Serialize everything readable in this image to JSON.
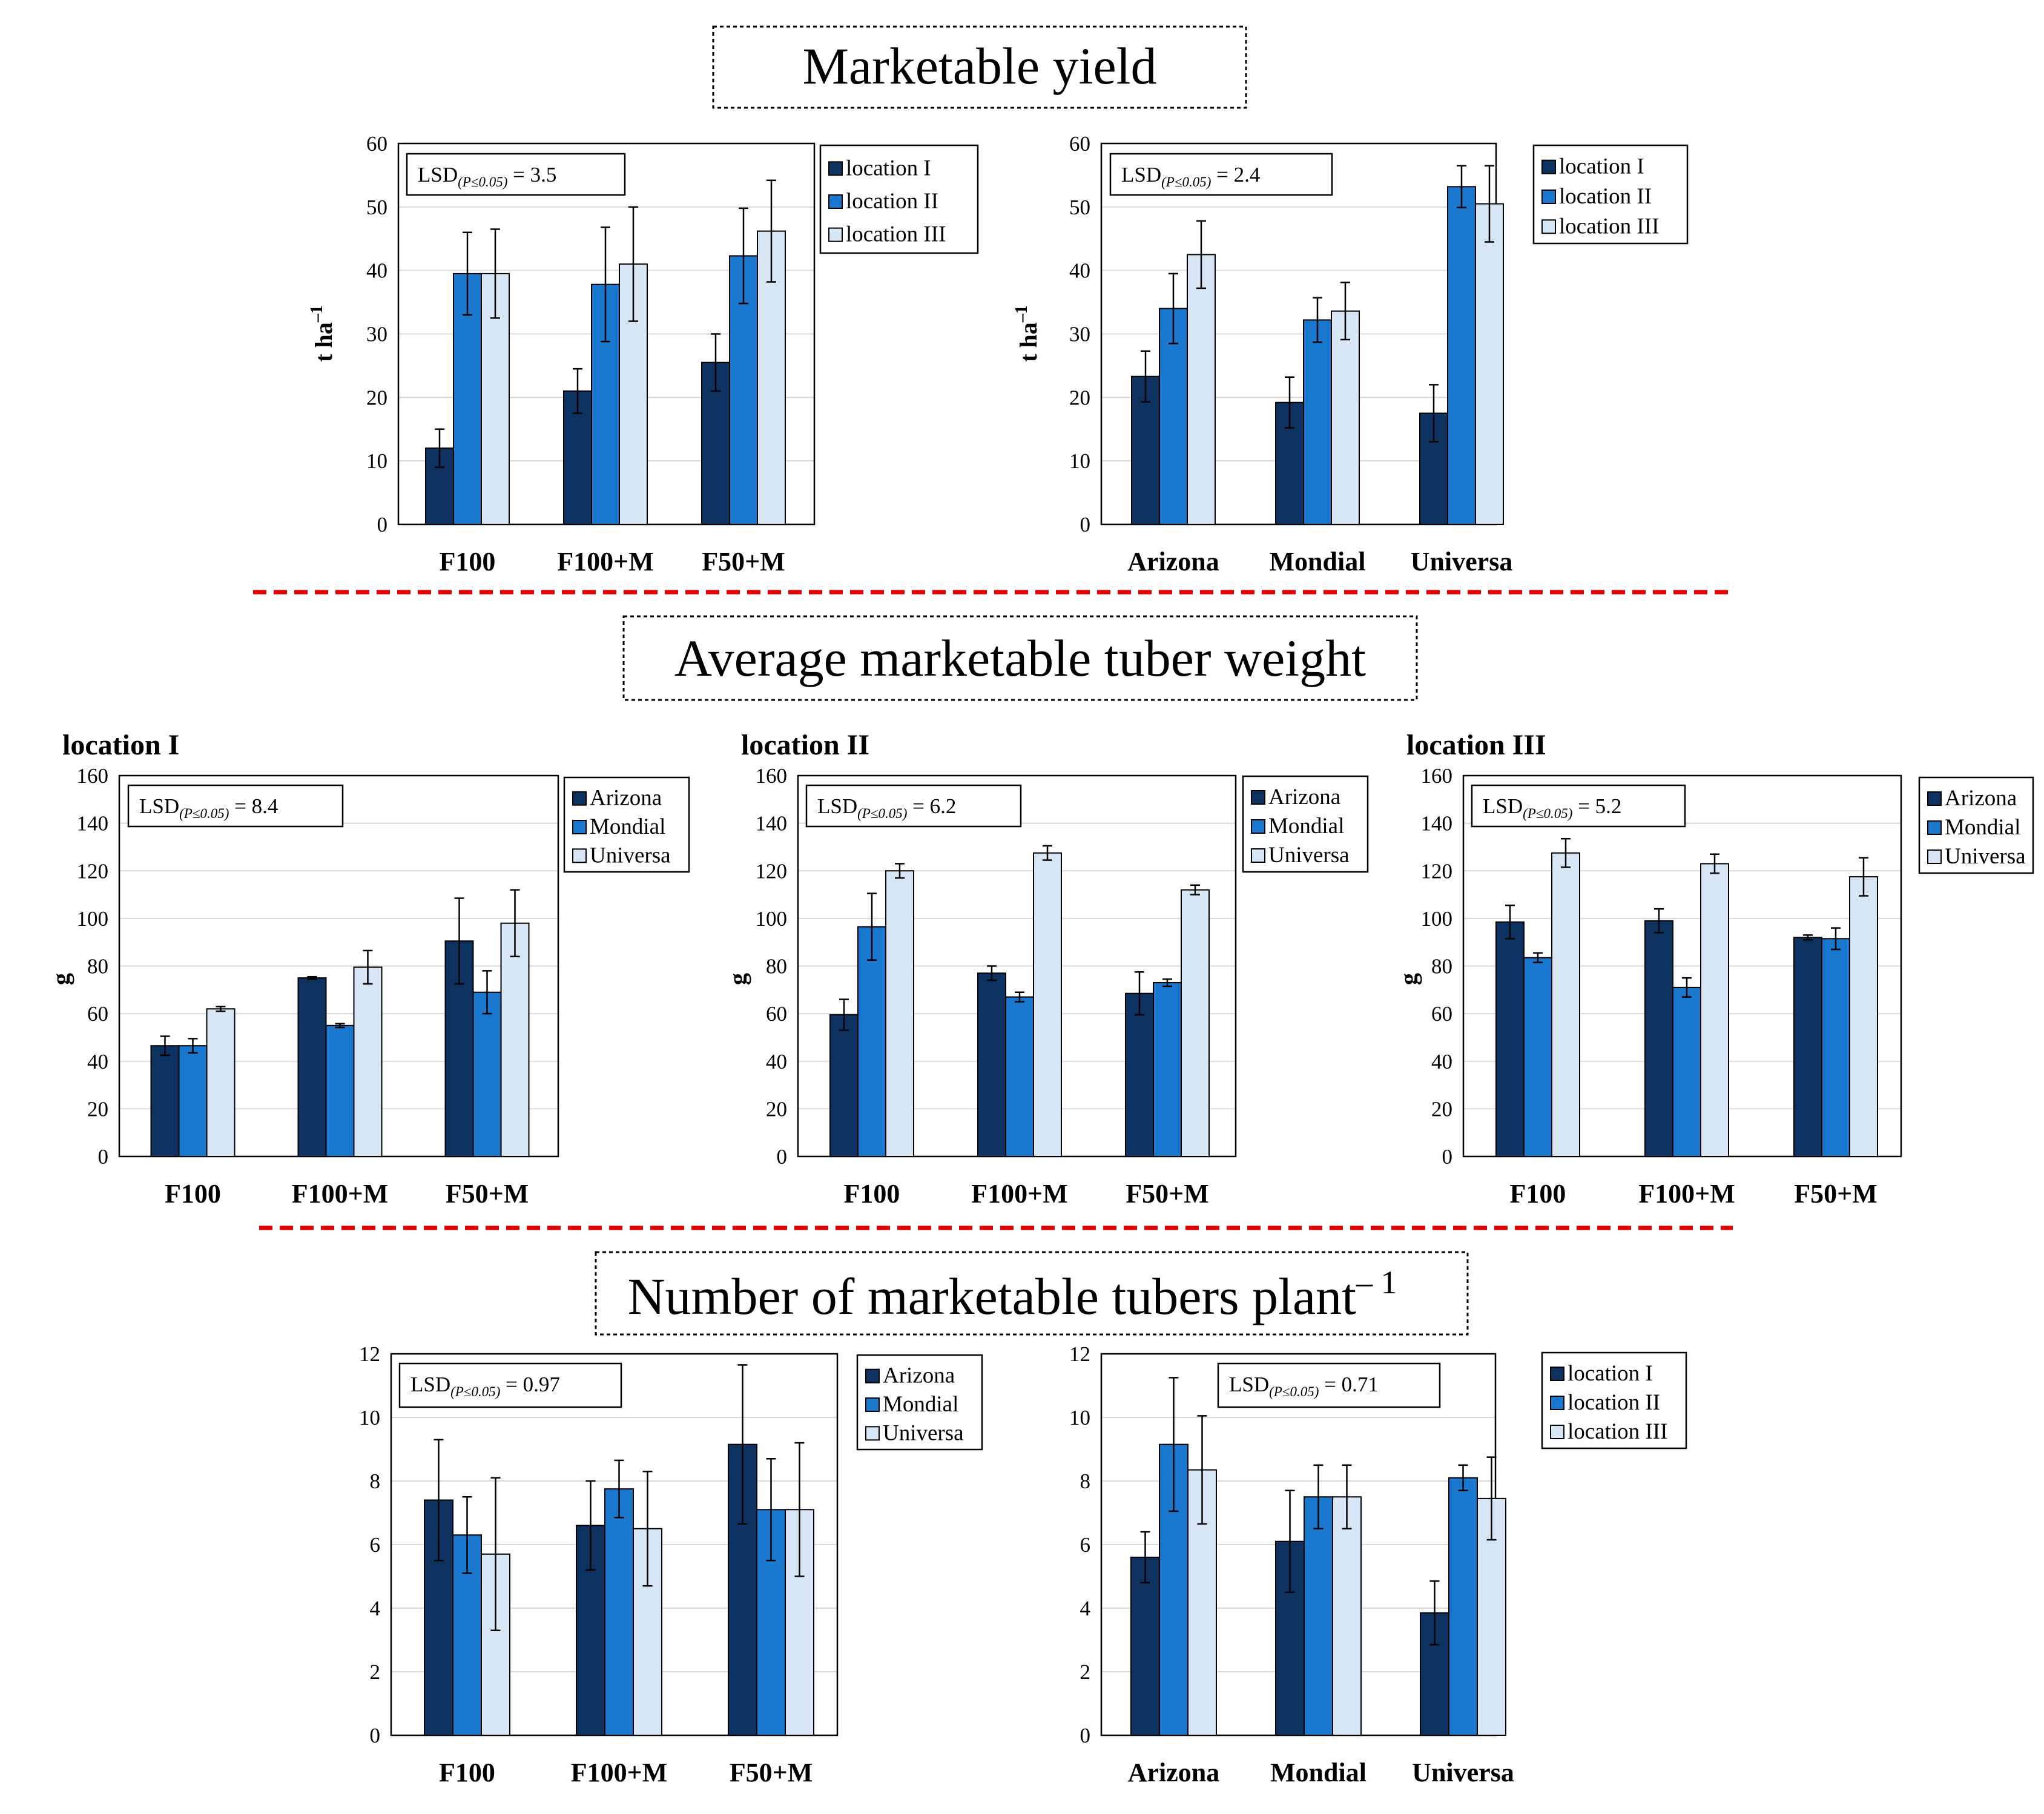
{
  "colors": {
    "location_I": "#0d3260",
    "location_II": "#1a78cf",
    "location_III": "#d7e6f5"
  },
  "titles": {
    "yield": "Marketable yield",
    "weight": "Average marketable tuber weight",
    "number": "Number of marketable tubers plant",
    "number_sup": "– 1"
  },
  "chart_data": [
    {
      "type": "bar",
      "group": "yield",
      "panel_title": "",
      "categories": [
        "F100",
        "F100+M",
        "F50+M"
      ],
      "ylabel": "t ha",
      "ylabel_sup": "–1",
      "ylim": [
        0,
        60
      ],
      "yticks": [
        0,
        10,
        20,
        30,
        40,
        50,
        60
      ],
      "lsd": {
        "label": "LSD",
        "sub": "(P≤0.05)",
        "value": "= 3.5"
      },
      "series": [
        {
          "name": "location I",
          "values": [
            12,
            21,
            25.5
          ],
          "errors": [
            3,
            3.5,
            4.5
          ]
        },
        {
          "name": "location II",
          "values": [
            39.5,
            37.8,
            42.3
          ],
          "errors": [
            6.5,
            9,
            7.5
          ]
        },
        {
          "name": "location III",
          "values": [
            39.5,
            41,
            46.2
          ],
          "errors": [
            7,
            9,
            8
          ]
        }
      ]
    },
    {
      "type": "bar",
      "group": "yield",
      "panel_title": "",
      "categories": [
        "Arizona",
        "Mondial",
        "Universa"
      ],
      "ylabel": "t ha",
      "ylabel_sup": "–1",
      "ylim": [
        0,
        60
      ],
      "yticks": [
        0,
        10,
        20,
        30,
        40,
        50,
        60
      ],
      "lsd": {
        "label": "LSD",
        "sub": "(P≤0.05)",
        "value": "= 2.4"
      },
      "series": [
        {
          "name": "location I",
          "values": [
            23.3,
            19.2,
            17.5
          ],
          "errors": [
            4,
            4,
            4.5
          ]
        },
        {
          "name": "location II",
          "values": [
            34,
            32.2,
            53.2
          ],
          "errors": [
            5.5,
            3.5,
            3.3
          ]
        },
        {
          "name": "location III",
          "values": [
            42.5,
            33.6,
            50.5
          ],
          "errors": [
            5.3,
            4.5,
            6
          ]
        }
      ]
    },
    {
      "type": "bar",
      "group": "weight",
      "panel_title": "location I",
      "categories": [
        "F100",
        "F100+M",
        "F50+M"
      ],
      "ylabel": "g",
      "ylabel_sup": "",
      "ylim": [
        0,
        160
      ],
      "yticks": [
        0,
        20,
        40,
        60,
        80,
        100,
        120,
        140,
        160
      ],
      "lsd": {
        "label": "LSD",
        "sub": "(P≤0.05)",
        "value": "= 8.4"
      },
      "series": [
        {
          "name": "Arizona",
          "values": [
            46.5,
            75,
            90.5
          ],
          "errors": [
            4,
            0.5,
            18
          ]
        },
        {
          "name": "Mondial",
          "values": [
            46.5,
            55,
            69
          ],
          "errors": [
            3,
            0.8,
            9
          ]
        },
        {
          "name": "Universa",
          "values": [
            62,
            79.5,
            98
          ],
          "errors": [
            1,
            7,
            14
          ]
        }
      ]
    },
    {
      "type": "bar",
      "group": "weight",
      "panel_title": "location II",
      "categories": [
        "F100",
        "F100+M",
        "F50+M"
      ],
      "ylabel": "g",
      "ylabel_sup": "",
      "ylim": [
        0,
        160
      ],
      "yticks": [
        0,
        20,
        40,
        60,
        80,
        100,
        120,
        140,
        160
      ],
      "lsd": {
        "label": "LSD",
        "sub": "(P≤0.05)",
        "value": "= 6.2"
      },
      "series": [
        {
          "name": "Arizona",
          "values": [
            59.5,
            77,
            68.5
          ],
          "errors": [
            6.5,
            3,
            9
          ]
        },
        {
          "name": "Mondial",
          "values": [
            96.5,
            67,
            73
          ],
          "errors": [
            14,
            2,
            1.5
          ]
        },
        {
          "name": "Universa",
          "values": [
            120,
            127.5,
            112
          ],
          "errors": [
            3,
            3,
            2
          ]
        }
      ]
    },
    {
      "type": "bar",
      "group": "weight",
      "panel_title": "location III",
      "categories": [
        "F100",
        "F100+M",
        "F50+M"
      ],
      "ylabel": "g",
      "ylabel_sup": "",
      "ylim": [
        0,
        160
      ],
      "yticks": [
        0,
        20,
        40,
        60,
        80,
        100,
        120,
        140,
        160
      ],
      "lsd": {
        "label": "LSD",
        "sub": "(P≤0.05)",
        "value": "= 5.2"
      },
      "series": [
        {
          "name": "Arizona",
          "values": [
            98.5,
            99,
            92
          ],
          "errors": [
            7,
            5,
            1
          ]
        },
        {
          "name": "Mondial",
          "values": [
            83.5,
            71,
            91.5
          ],
          "errors": [
            2,
            4,
            4.5
          ]
        },
        {
          "name": "Universa",
          "values": [
            127.5,
            123,
            117.5
          ],
          "errors": [
            6,
            4,
            8
          ]
        }
      ]
    },
    {
      "type": "bar",
      "group": "number",
      "panel_title": "",
      "categories": [
        "F100",
        "F100+M",
        "F50+M"
      ],
      "ylabel": "",
      "ylabel_sup": "",
      "ylim": [
        0,
        12
      ],
      "yticks": [
        0,
        2,
        4,
        6,
        8,
        10,
        12
      ],
      "lsd": {
        "label": "LSD",
        "sub": "(P≤0.05)",
        "value": "= 0.97"
      },
      "series": [
        {
          "name": "Arizona",
          "values": [
            7.4,
            6.6,
            9.15
          ],
          "errors": [
            1.9,
            1.4,
            2.5
          ]
        },
        {
          "name": "Mondial",
          "values": [
            6.3,
            7.75,
            7.1
          ],
          "errors": [
            1.2,
            0.9,
            1.6
          ]
        },
        {
          "name": "Universa",
          "values": [
            5.7,
            6.5,
            7.1
          ],
          "errors": [
            2.4,
            1.8,
            2.1
          ]
        }
      ]
    },
    {
      "type": "bar",
      "group": "number",
      "panel_title": "",
      "categories": [
        "Arizona",
        "Mondial",
        "Universa"
      ],
      "ylabel": "",
      "ylabel_sup": "",
      "ylim": [
        0,
        12
      ],
      "yticks": [
        0,
        2,
        4,
        6,
        8,
        10,
        12
      ],
      "lsd": {
        "label": "LSD",
        "sub": "(P≤0.05)",
        "value": "= 0.71"
      },
      "series": [
        {
          "name": "location I",
          "values": [
            5.6,
            6.1,
            3.85
          ],
          "errors": [
            0.8,
            1.6,
            1
          ]
        },
        {
          "name": "location II",
          "values": [
            9.15,
            7.5,
            8.1
          ],
          "errors": [
            2.1,
            1,
            0.4
          ]
        },
        {
          "name": "location III",
          "values": [
            8.35,
            7.5,
            7.45
          ],
          "errors": [
            1.7,
            1,
            1.3
          ]
        }
      ]
    }
  ]
}
